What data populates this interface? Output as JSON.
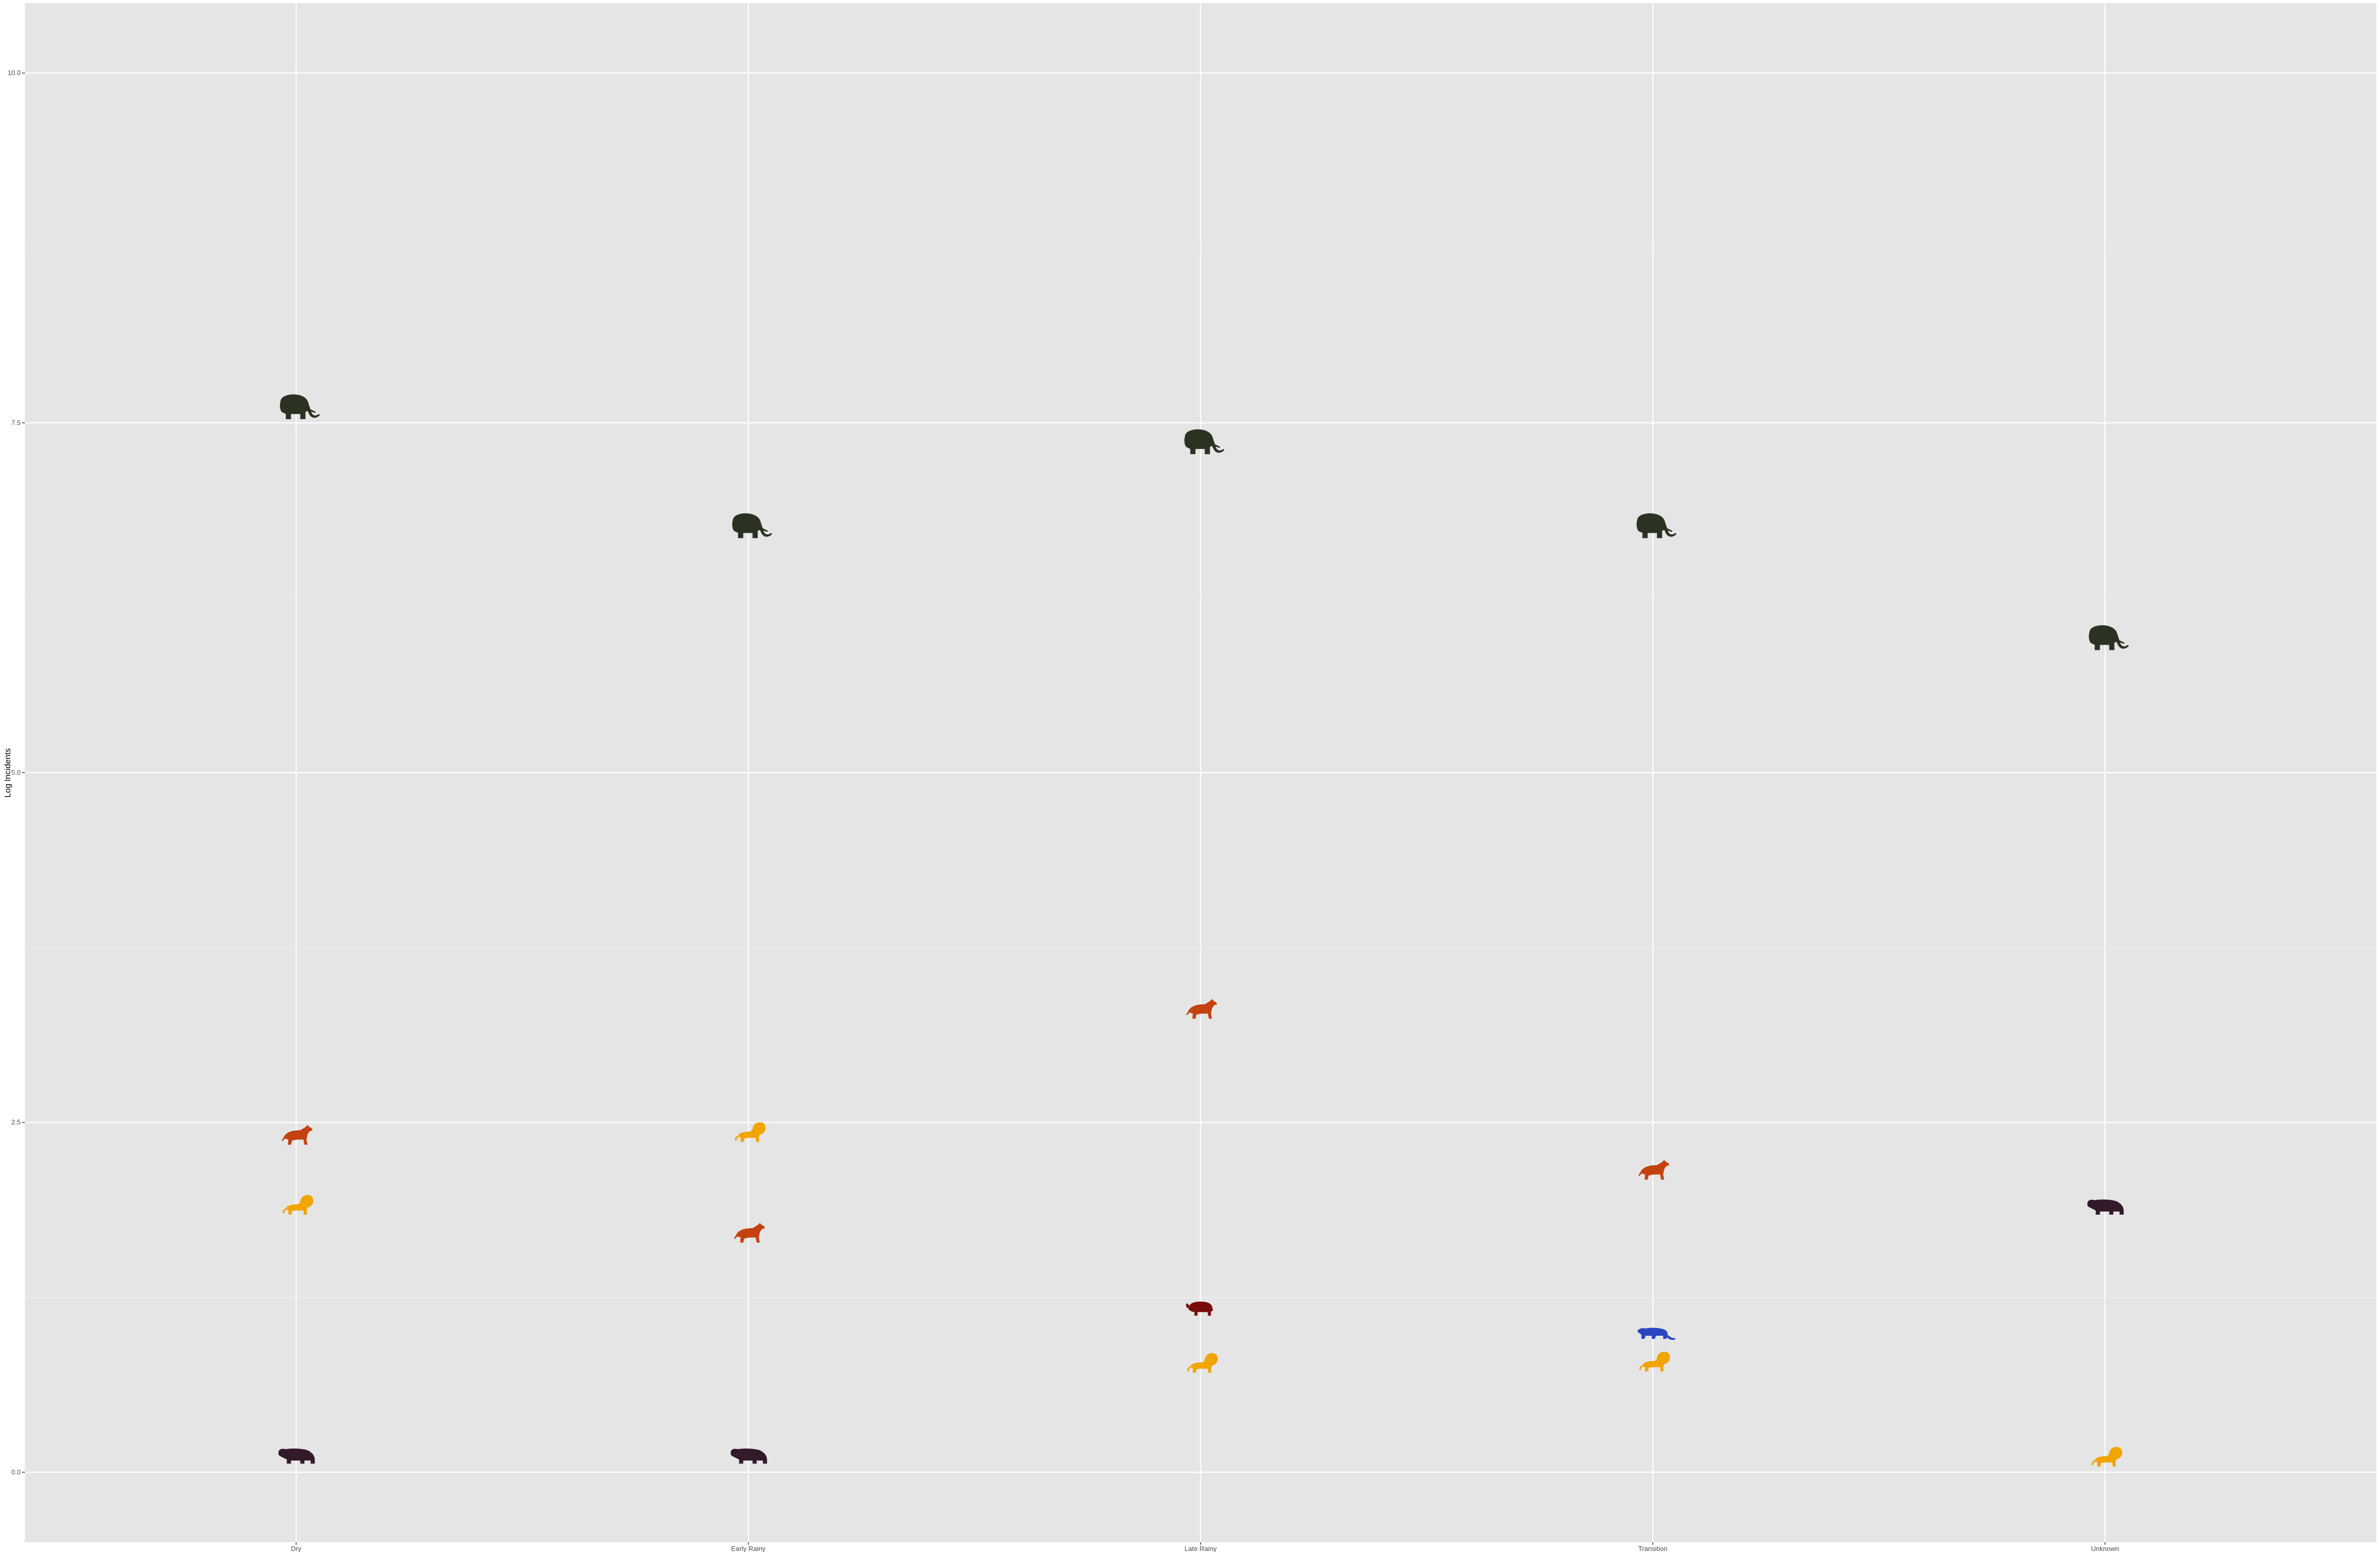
{
  "chart_data": {
    "type": "scatter",
    "title": "",
    "xlabel": "",
    "ylabel": "Log Incidents",
    "categories": [
      "Dry",
      "Early Rainy",
      "Late Rainy",
      "Transition",
      "Unknown"
    ],
    "ylim": [
      -0.5,
      10.5
    ],
    "yticks": [
      "0.0",
      "2.5",
      "5.0",
      "7.5",
      "10.0"
    ],
    "grid": true,
    "legend": "none",
    "series": [
      {
        "icon": "elephant-icon",
        "color": "#2b3221",
        "values": [
          7.6,
          6.75,
          7.35,
          6.75,
          5.95
        ]
      },
      {
        "icon": "hyena-icon",
        "color": "#c4420f",
        "values": [
          2.4,
          1.7,
          3.3,
          2.15,
          null
        ]
      },
      {
        "icon": "lion-icon",
        "color": "#f2a400",
        "values": [
          1.9,
          2.42,
          0.77,
          0.78,
          0.1
        ]
      },
      {
        "icon": "hippo-icon",
        "color": "#331a2b",
        "values": [
          0.12,
          0.12,
          null,
          null,
          1.9
        ]
      },
      {
        "icon": "buffalo-icon",
        "color": "#7a0b0b",
        "values": [
          null,
          null,
          1.17,
          null,
          null
        ]
      },
      {
        "icon": "leopard-icon",
        "color": "#2a46c2",
        "values": [
          null,
          null,
          null,
          0.99,
          null
        ]
      }
    ]
  }
}
